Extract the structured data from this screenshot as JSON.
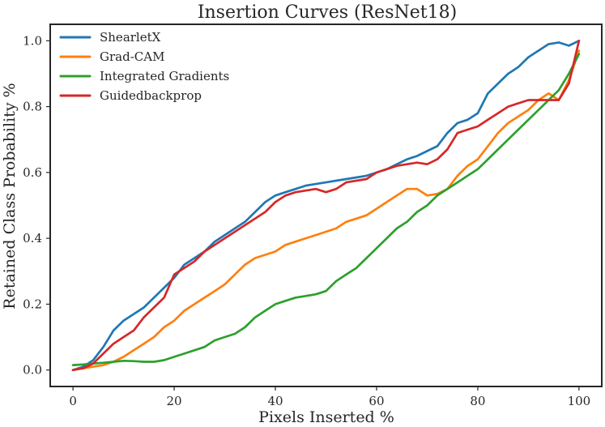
{
  "chart_data": {
    "type": "line",
    "title": "Insertion Curves (ResNet18)",
    "xlabel": "Pixels Inserted %",
    "ylabel": "Retained Class Probability %",
    "xlim": [
      -4.5,
      104.5
    ],
    "ylim": [
      -0.05,
      1.05
    ],
    "xticks": [
      0,
      20,
      40,
      60,
      80,
      100
    ],
    "yticks": [
      0.0,
      0.2,
      0.4,
      0.6,
      0.8,
      1.0
    ],
    "xtick_labels": [
      "0",
      "20",
      "40",
      "60",
      "80",
      "100"
    ],
    "ytick_labels": [
      "0.0",
      "0.2",
      "0.4",
      "0.6",
      "0.8",
      "1.0"
    ],
    "grid": false,
    "legend_position": "top-left",
    "x": [
      0,
      2,
      4,
      6,
      8,
      10,
      12,
      14,
      16,
      18,
      20,
      22,
      24,
      26,
      28,
      30,
      32,
      34,
      36,
      38,
      40,
      42,
      44,
      46,
      48,
      50,
      52,
      54,
      56,
      58,
      60,
      62,
      64,
      66,
      68,
      70,
      72,
      74,
      76,
      78,
      80,
      82,
      84,
      86,
      88,
      90,
      92,
      94,
      96,
      98,
      100
    ],
    "series": [
      {
        "name": "ShearletX",
        "color": "#1f77b4",
        "values": [
          0.0,
          0.01,
          0.03,
          0.07,
          0.12,
          0.15,
          0.17,
          0.19,
          0.22,
          0.25,
          0.28,
          0.32,
          0.34,
          0.36,
          0.39,
          0.41,
          0.43,
          0.45,
          0.48,
          0.51,
          0.53,
          0.54,
          0.55,
          0.56,
          0.565,
          0.57,
          0.575,
          0.58,
          0.585,
          0.59,
          0.6,
          0.61,
          0.625,
          0.64,
          0.65,
          0.665,
          0.68,
          0.72,
          0.75,
          0.76,
          0.78,
          0.84,
          0.87,
          0.9,
          0.92,
          0.95,
          0.97,
          0.99,
          0.995,
          0.985,
          1.0
        ]
      },
      {
        "name": "Grad-CAM",
        "color": "#ff7f0e",
        "values": [
          0.0,
          0.005,
          0.01,
          0.015,
          0.025,
          0.04,
          0.06,
          0.08,
          0.1,
          0.13,
          0.15,
          0.18,
          0.2,
          0.22,
          0.24,
          0.26,
          0.29,
          0.32,
          0.34,
          0.35,
          0.36,
          0.38,
          0.39,
          0.4,
          0.41,
          0.42,
          0.43,
          0.45,
          0.46,
          0.47,
          0.49,
          0.51,
          0.53,
          0.55,
          0.55,
          0.53,
          0.535,
          0.55,
          0.59,
          0.62,
          0.64,
          0.68,
          0.72,
          0.75,
          0.77,
          0.79,
          0.82,
          0.84,
          0.82,
          0.88,
          0.97
        ]
      },
      {
        "name": "Integrated Gradients",
        "color": "#2ca02c",
        "values": [
          0.015,
          0.017,
          0.02,
          0.022,
          0.025,
          0.028,
          0.027,
          0.025,
          0.025,
          0.03,
          0.04,
          0.05,
          0.06,
          0.07,
          0.09,
          0.1,
          0.11,
          0.13,
          0.16,
          0.18,
          0.2,
          0.21,
          0.22,
          0.225,
          0.23,
          0.24,
          0.27,
          0.29,
          0.31,
          0.34,
          0.37,
          0.4,
          0.43,
          0.45,
          0.48,
          0.5,
          0.53,
          0.55,
          0.57,
          0.59,
          0.61,
          0.64,
          0.67,
          0.7,
          0.73,
          0.76,
          0.79,
          0.82,
          0.85,
          0.9,
          0.96
        ]
      },
      {
        "name": "Guidedbackprop",
        "color": "#d62728",
        "values": [
          0.0,
          0.005,
          0.02,
          0.05,
          0.08,
          0.1,
          0.12,
          0.16,
          0.19,
          0.22,
          0.29,
          0.31,
          0.33,
          0.36,
          0.38,
          0.4,
          0.42,
          0.44,
          0.46,
          0.48,
          0.51,
          0.53,
          0.54,
          0.545,
          0.55,
          0.54,
          0.55,
          0.57,
          0.575,
          0.58,
          0.6,
          0.61,
          0.62,
          0.625,
          0.63,
          0.625,
          0.64,
          0.67,
          0.72,
          0.73,
          0.74,
          0.76,
          0.78,
          0.8,
          0.81,
          0.82,
          0.82,
          0.82,
          0.82,
          0.87,
          1.0
        ]
      }
    ]
  }
}
